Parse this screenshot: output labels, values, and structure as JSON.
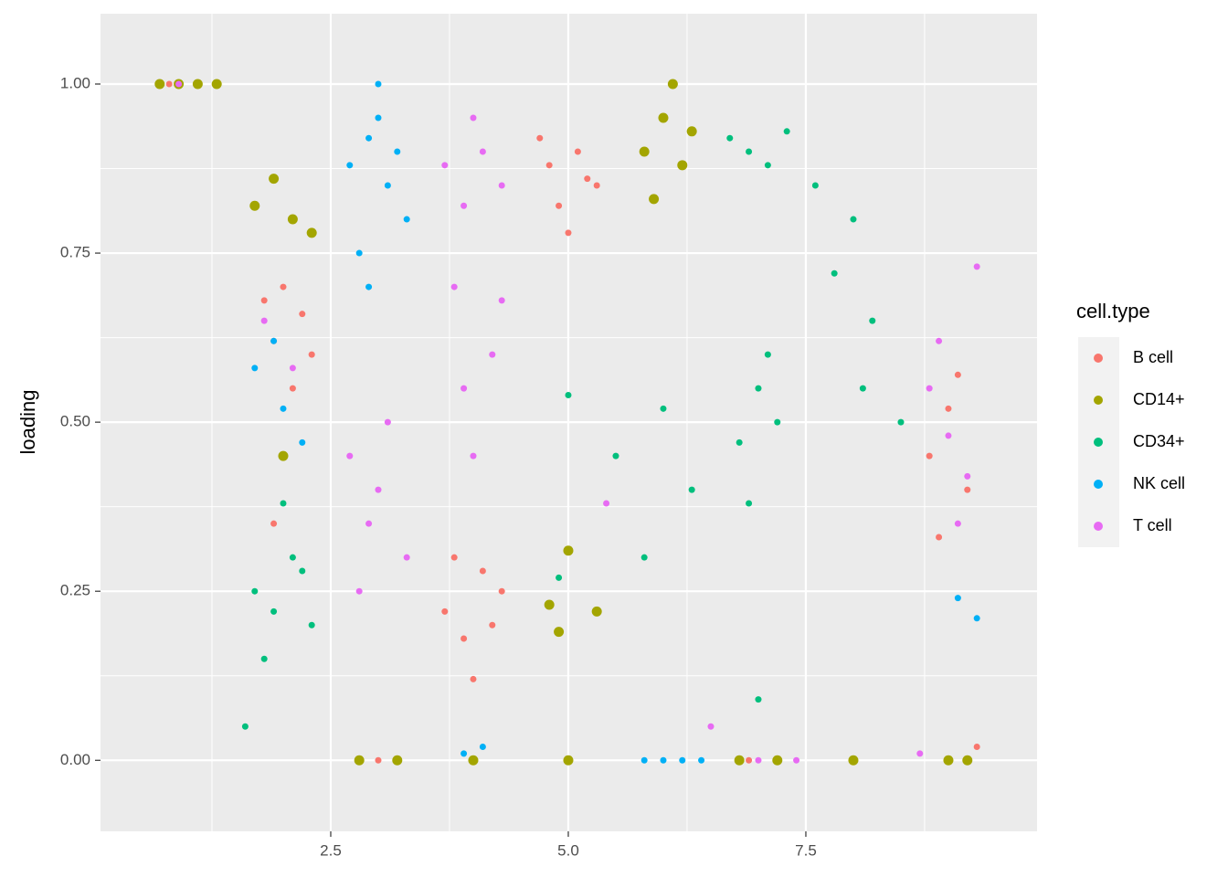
{
  "chart_data": {
    "type": "scatter",
    "y_label": "loading",
    "legend_title": "cell.type",
    "legend": "right",
    "grid": true,
    "xlim": [
      0.077,
      9.933
    ],
    "ylim": [
      -0.105,
      1.104
    ],
    "xticks": [
      2.5,
      {
        "value": 5,
        "label": "5.0"
      },
      7.5
    ],
    "yticks": [
      {
        "value": 0,
        "label": "0.00"
      },
      {
        "value": 0.25,
        "label": "0.25"
      },
      {
        "value": 0.5,
        "label": "0.50"
      },
      {
        "value": 0.75,
        "label": "0.75"
      },
      {
        "value": 1,
        "label": "1.00"
      }
    ],
    "series": [
      {
        "name": "B cell",
        "color": "#F8766D",
        "marker_size": 3.5,
        "x": [
          0.8,
          1.9,
          2.0,
          2.1,
          2.2,
          1.8,
          2.3,
          1.9,
          3.7,
          3.9,
          4.1,
          4.3,
          3.8,
          4.0,
          4.2,
          4.8,
          4.9,
          5.1,
          5.3,
          4.7,
          5.0,
          5.2,
          8.8,
          9.0,
          9.2,
          8.9,
          9.1,
          3.0,
          6.9,
          8.0,
          9.3
        ],
        "values": [
          1.0,
          0.62,
          0.7,
          0.55,
          0.66,
          0.68,
          0.6,
          0.35,
          0.22,
          0.18,
          0.28,
          0.25,
          0.3,
          0.12,
          0.2,
          0.88,
          0.82,
          0.9,
          0.85,
          0.92,
          0.78,
          0.86,
          0.45,
          0.52,
          0.4,
          0.33,
          0.57,
          0.0,
          0.0,
          0.0,
          0.02
        ]
      },
      {
        "name": "CD14+",
        "color": "#A3A500",
        "marker_size": 5.5,
        "x": [
          0.7,
          0.9,
          1.1,
          1.3,
          1.7,
          1.9,
          2.1,
          2.3,
          2.0,
          5.8,
          6.0,
          6.2,
          6.1,
          5.9,
          6.3,
          4.8,
          5.0,
          5.3,
          4.9,
          2.8,
          3.2,
          4.0,
          5.0,
          6.8,
          7.2,
          8.0,
          9.0,
          9.2
        ],
        "values": [
          1.0,
          1.0,
          1.0,
          1.0,
          0.82,
          0.86,
          0.8,
          0.78,
          0.45,
          0.9,
          0.95,
          0.88,
          1.0,
          0.83,
          0.93,
          0.23,
          0.31,
          0.22,
          0.19,
          0.0,
          0.0,
          0.0,
          0.0,
          0.0,
          0.0,
          0.0,
          0.0,
          0.0
        ]
      },
      {
        "name": "CD34+",
        "color": "#00BF7D",
        "marker_size": 3.5,
        "x": [
          1.7,
          1.9,
          2.1,
          2.3,
          2.0,
          1.8,
          2.2,
          6.7,
          6.9,
          7.1,
          7.3,
          7.0,
          6.8,
          7.2,
          6.9,
          7.1,
          7.8,
          8.0,
          8.2,
          7.6,
          8.1,
          5.5,
          6.0,
          5.8,
          6.3,
          5.0,
          4.9,
          7.0,
          8.5,
          1.6
        ],
        "values": [
          0.25,
          0.22,
          0.3,
          0.2,
          0.38,
          0.15,
          0.28,
          0.92,
          0.9,
          0.88,
          0.93,
          0.55,
          0.47,
          0.5,
          0.38,
          0.6,
          0.72,
          0.8,
          0.65,
          0.85,
          0.55,
          0.45,
          0.52,
          0.3,
          0.4,
          0.54,
          0.27,
          0.09,
          0.5,
          0.05
        ]
      },
      {
        "name": "NK cell",
        "color": "#00B0F6",
        "marker_size": 3.5,
        "x": [
          2.7,
          2.9,
          3.1,
          3.3,
          3.0,
          2.8,
          3.2,
          2.9,
          1.7,
          2.0,
          2.2,
          1.9,
          6.0,
          6.2,
          6.4,
          5.8,
          3.9,
          4.1,
          9.3,
          9.1,
          3.0
        ],
        "values": [
          0.88,
          0.92,
          0.85,
          0.8,
          0.95,
          0.75,
          0.9,
          0.7,
          0.58,
          0.52,
          0.47,
          0.62,
          0.0,
          0.0,
          0.0,
          0.0,
          0.01,
          0.02,
          0.21,
          0.24,
          1.0
        ]
      },
      {
        "name": "T cell",
        "color": "#E76BF3",
        "marker_size": 3.5,
        "x": [
          3.7,
          3.9,
          4.1,
          4.3,
          4.0,
          3.8,
          4.2,
          4.0,
          3.9,
          4.3,
          2.7,
          2.9,
          3.1,
          3.3,
          3.0,
          2.8,
          8.8,
          9.0,
          9.2,
          9.1,
          8.9,
          1.8,
          2.1,
          7.0,
          7.4,
          8.7,
          9.3,
          0.9,
          6.5,
          5.4
        ],
        "values": [
          0.88,
          0.82,
          0.9,
          0.85,
          0.95,
          0.7,
          0.6,
          0.45,
          0.55,
          0.68,
          0.45,
          0.35,
          0.5,
          0.3,
          0.4,
          0.25,
          0.55,
          0.48,
          0.42,
          0.35,
          0.62,
          0.65,
          0.58,
          0.0,
          0.0,
          0.01,
          0.73,
          1.0,
          0.05,
          0.38
        ]
      }
    ]
  }
}
